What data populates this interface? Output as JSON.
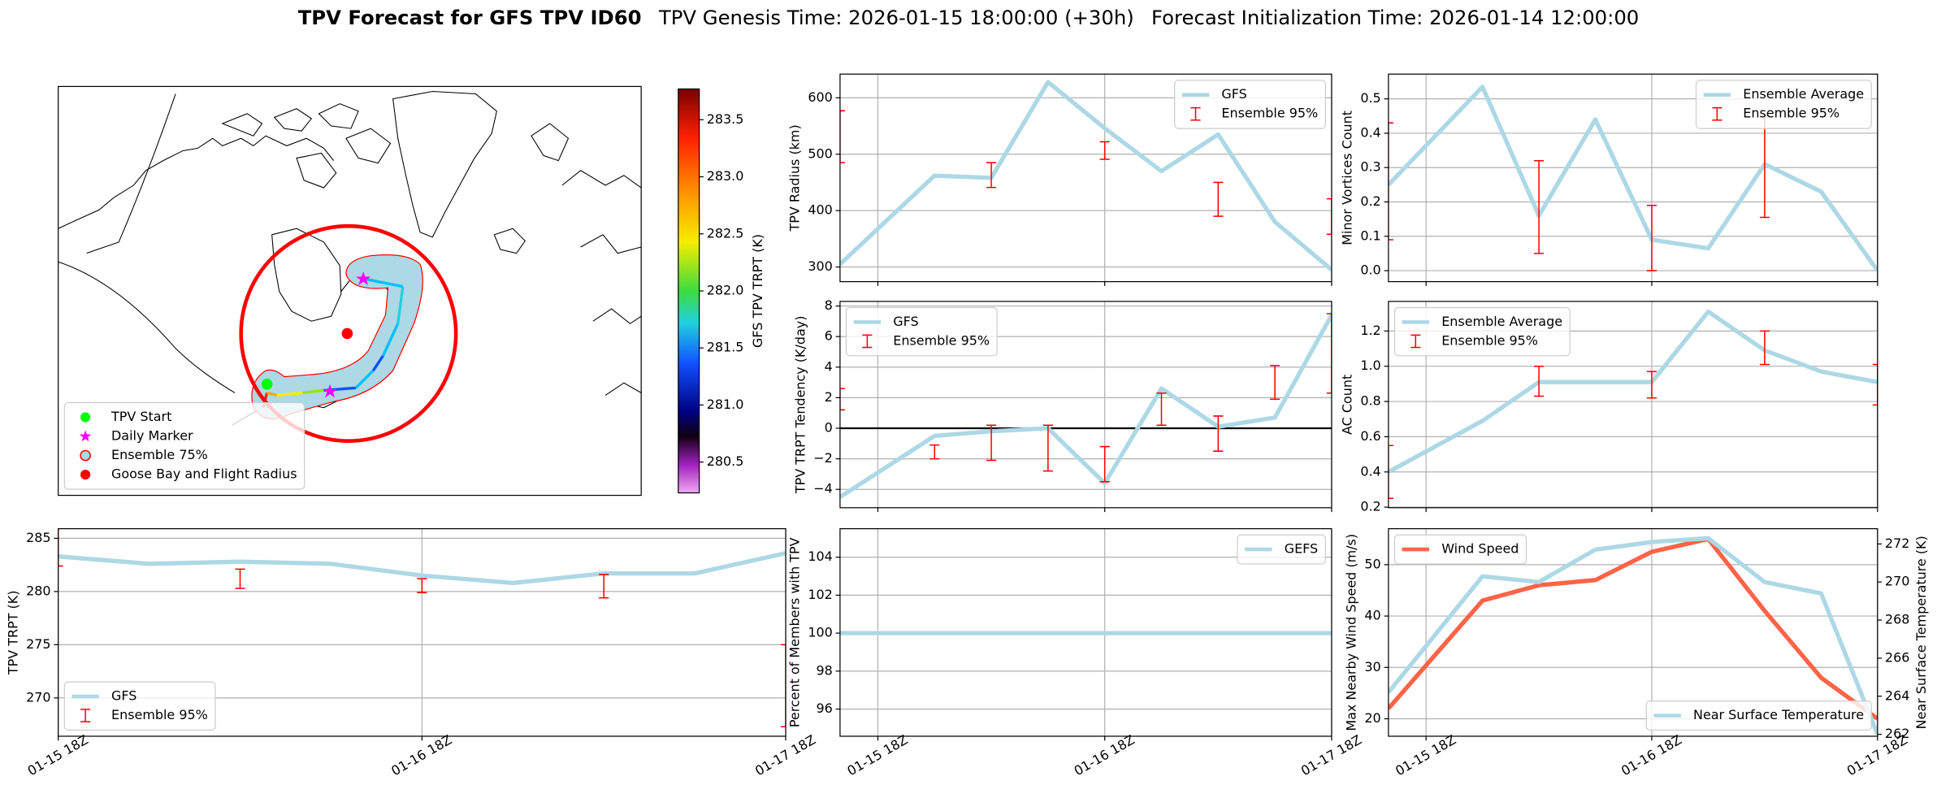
{
  "title": {
    "main": "TPV Forecast for GFS TPV ID60",
    "genesis": "TPV Genesis Time: 2026-01-15 18:00:00 (+30h)",
    "init": "Forecast Initialization Time: 2026-01-14 12:00:00"
  },
  "chart_data": [
    {
      "type": "map",
      "legend": [
        "TPV Start",
        "Daily Marker",
        "Ensemble 75%",
        "Goose Bay and Flight Radius"
      ],
      "colorbar": {
        "label": "GFS TPV TRPT (K)",
        "lim": [
          280.23,
          283.77
        ],
        "ticks": [
          280.5,
          {
            "value": 281,
            "label": "281.0"
          },
          281.5,
          {
            "value": 282,
            "label": "282.0"
          },
          282.5,
          {
            "value": 283,
            "label": "283.0"
          },
          283.5
        ]
      }
    },
    {
      "type": "line",
      "ylabel": "TPV TRPT (K)",
      "xlim": [
        0,
        48
      ],
      "xticks": [
        {
          "value": 0,
          "label": "01-15 18Z"
        },
        {
          "value": 24,
          "label": "01-16 18Z"
        },
        {
          "value": 48,
          "label": "01-17 18Z"
        }
      ],
      "ylim": [
        266.4,
        285.9
      ],
      "yticks": [
        270,
        275,
        280,
        285
      ],
      "grid": true,
      "legend": "lower left",
      "x": [
        0,
        6,
        12,
        18,
        24,
        30,
        36,
        42,
        48
      ],
      "series": [
        {
          "name": "GFS",
          "color": "#add8e6",
          "values": [
            283.3,
            282.6,
            282.8,
            282.6,
            281.5,
            280.8,
            281.7,
            281.7,
            283.6
          ]
        }
      ],
      "errorbars": {
        "name": "Ensemble 95%",
        "color": "#ff0000",
        "x": [
          0,
          12,
          24,
          36,
          48
        ],
        "lower": [
          282.4,
          280.3,
          279.9,
          279.4,
          267.3
        ],
        "upper": [
          287.0,
          282.1,
          281.2,
          281.6,
          275.0
        ]
      }
    },
    {
      "type": "line",
      "ylabel": "TPV Radius (km)",
      "xlim": [
        -4,
        48
      ],
      "xticks": [
        0,
        24,
        48
      ],
      "xtick_labels": false,
      "ylim": [
        274,
        642
      ],
      "yticks": [
        300,
        400,
        500,
        600
      ],
      "grid": true,
      "legend": "upper right",
      "x": [
        -4,
        6,
        12,
        18,
        24,
        30,
        36,
        42,
        48
      ],
      "series": [
        {
          "name": "GFS",
          "color": "#add8e6",
          "values": [
            305,
            462,
            458,
            628,
            546,
            470,
            535,
            380,
            295
          ]
        }
      ],
      "errorbars": {
        "name": "Ensemble 95%",
        "color": "#ff0000",
        "x": [
          -4,
          12,
          24,
          36,
          48
        ],
        "lower": [
          485,
          441,
          491,
          390,
          358
        ],
        "upper": [
          577,
          485,
          522,
          450,
          421
        ]
      }
    },
    {
      "type": "line",
      "ylabel": "TPV TRPT Tendency (K/day)",
      "xlim": [
        -4,
        48
      ],
      "xticks": [
        0,
        24,
        48
      ],
      "xtick_labels": false,
      "ylim": [
        -5.2,
        8.3
      ],
      "yticks": [
        {
          "value": -4,
          "label": "−4"
        },
        {
          "value": -2,
          "label": "−2"
        },
        0,
        2,
        4,
        6,
        8
      ],
      "grid": true,
      "legend": "upper left",
      "hline": 0,
      "x": [
        -4,
        6,
        12,
        18,
        24,
        30,
        36,
        42,
        48
      ],
      "series": [
        {
          "name": "GFS",
          "color": "#add8e6",
          "values": [
            -4.5,
            -0.5,
            -0.2,
            0,
            -3.6,
            2.6,
            0.1,
            0.7,
            7.4
          ]
        }
      ],
      "errorbars": {
        "name": "Ensemble 95%",
        "color": "#ff0000",
        "x": [
          -4,
          6,
          12,
          18,
          24,
          30,
          36,
          42,
          48
        ],
        "lower": [
          1.2,
          -2.0,
          -2.1,
          -2.8,
          -3.5,
          0.2,
          -1.5,
          1.9,
          2.3
        ],
        "upper": [
          2.6,
          -1.1,
          0.2,
          0.2,
          -1.2,
          2.3,
          0.8,
          4.1,
          7.5
        ]
      }
    },
    {
      "type": "line",
      "ylabel": "Percent of Members with TPV",
      "xlim": [
        -4,
        48
      ],
      "xticks": [
        {
          "value": 0,
          "label": "01-15 18Z"
        },
        {
          "value": 24,
          "label": "01-16 18Z"
        },
        {
          "value": 48,
          "label": "01-17 18Z"
        }
      ],
      "ylim": [
        94.57,
        105.5
      ],
      "yticks": [
        96,
        98,
        100,
        102,
        104
      ],
      "grid": true,
      "legend": "upper right",
      "x": [
        -4,
        6,
        12,
        18,
        24,
        30,
        36,
        42,
        48
      ],
      "series": [
        {
          "name": "GEFS",
          "color": "#add8e6",
          "values": [
            100,
            100,
            100,
            100,
            100,
            100,
            100,
            100,
            100
          ]
        }
      ]
    },
    {
      "type": "line",
      "ylabel": "Minor Vortices Count",
      "xlim": [
        -4,
        48
      ],
      "xticks": [
        0,
        24,
        48
      ],
      "xtick_labels": false,
      "ylim": [
        -0.032,
        0.572
      ],
      "yticks": [
        {
          "value": 0,
          "label": "0.0"
        },
        0.1,
        0.2,
        0.3,
        0.4,
        0.5
      ],
      "grid": true,
      "legend": "upper right",
      "x": [
        -4,
        6,
        12,
        18,
        24,
        30,
        36,
        42,
        48
      ],
      "series": [
        {
          "name": "Ensemble Average",
          "color": "#add8e6",
          "values": [
            0.25,
            0.535,
            0.16,
            0.44,
            0.09,
            0.065,
            0.31,
            0.23,
            0.0
          ]
        }
      ],
      "errorbars": {
        "name": "Ensemble 95%",
        "color": "#ff0000",
        "x": [
          -4,
          12,
          24,
          36
        ],
        "lower": [
          0.09,
          0.05,
          0.0,
          0.155
        ],
        "upper": [
          0.43,
          0.32,
          0.19,
          0.45
        ]
      }
    },
    {
      "type": "line",
      "ylabel": "AC Count",
      "xlim": [
        -4,
        48
      ],
      "xticks": [
        0,
        24,
        48
      ],
      "xtick_labels": false,
      "ylim": [
        0.197,
        1.368
      ],
      "yticks": [
        0.2,
        0.4,
        0.6,
        0.8,
        {
          "value": 1,
          "label": "1.0"
        },
        1.2
      ],
      "grid": true,
      "legend": "upper left",
      "x": [
        -4,
        6,
        12,
        18,
        24,
        30,
        36,
        42,
        48
      ],
      "series": [
        {
          "name": "Ensemble Average",
          "color": "#add8e6",
          "values": [
            0.4,
            0.69,
            0.91,
            0.91,
            0.91,
            1.31,
            1.09,
            0.97,
            0.91
          ]
        }
      ],
      "errorbars": {
        "name": "Ensemble 95%",
        "color": "#ff0000",
        "x": [
          -4,
          12,
          24,
          36,
          48
        ],
        "lower": [
          0.25,
          0.83,
          0.82,
          1.01,
          0.78
        ],
        "upper": [
          0.55,
          1.0,
          0.97,
          1.2,
          1.01
        ]
      }
    },
    {
      "type": "line",
      "ylabel": "Max Nearby Wind Speed (m/s)",
      "y2label": "Near Surface Temperature (K)",
      "ycolor": "#ff6347",
      "y2color": "#4169e1",
      "xlim": [
        -4,
        48
      ],
      "xticks": [
        {
          "value": 0,
          "label": "01-15 18Z"
        },
        {
          "value": 24,
          "label": "01-16 18Z"
        },
        {
          "value": 48,
          "label": "01-17 18Z"
        }
      ],
      "ylim": [
        16.6,
        57.0
      ],
      "yticks": [
        20,
        30,
        40,
        50
      ],
      "y2lim": [
        261.9,
        272.8
      ],
      "y2ticks": [
        262,
        264,
        266,
        268,
        270,
        272
      ],
      "grid": true,
      "x": [
        -4,
        6,
        12,
        18,
        24,
        30,
        36,
        42,
        48
      ],
      "series": [
        {
          "name": "Wind Speed",
          "color": "#ff6347",
          "legend": "upper left",
          "values": [
            22,
            43,
            46,
            47,
            52.5,
            55,
            41,
            28,
            20
          ]
        },
        {
          "name": "Near Surface Temperature",
          "color": "#add8e6",
          "axis": "y2",
          "legend": "lower right",
          "values": [
            264.2,
            270.3,
            270.0,
            271.7,
            272.1,
            272.3,
            270.0,
            269.4,
            262.0
          ]
        }
      ]
    }
  ]
}
